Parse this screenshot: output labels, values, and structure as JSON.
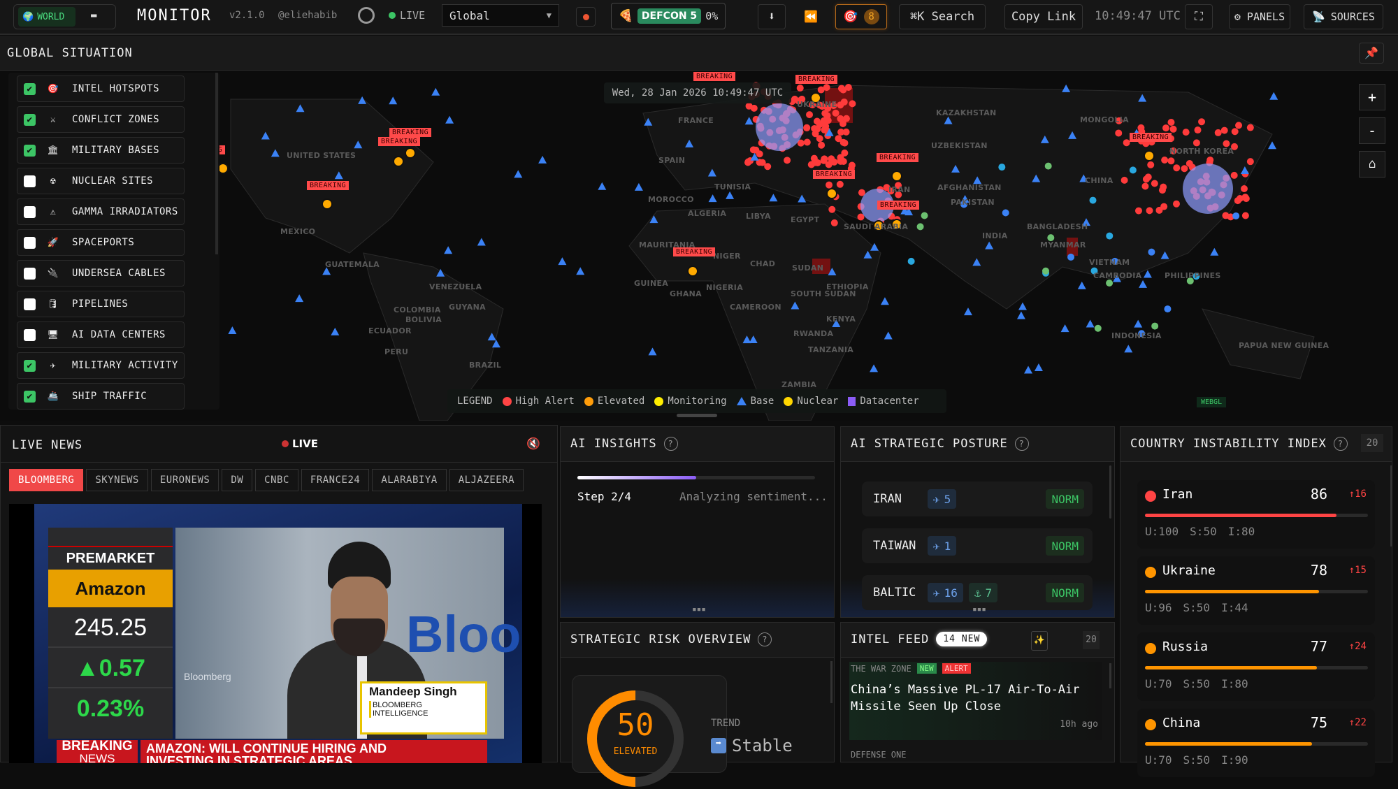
{
  "header": {
    "world_label": "WORLD",
    "title": "MONITOR",
    "version": "v2.1.0",
    "handle": "@eliehabib",
    "live_label": "LIVE",
    "region_select": "Global",
    "defcon_label": "DEFCON 5",
    "defcon_pct": "0%",
    "alerts_count": "8",
    "search_label": "⌘K  Search",
    "copy_link": "Copy Link",
    "clock": "10:49:47 UTC",
    "panels_label": "⚙ PANELS",
    "sources_label": "SOURCES"
  },
  "situation": {
    "title": "GLOBAL SITUATION"
  },
  "map": {
    "timestamp": "Wed, 28 Jan 2026 10:49:47 UTC",
    "zoom_in": "+",
    "zoom_out": "-",
    "home": "⌂",
    "renderer": "WEBGL",
    "breaking_label": "BREAKING",
    "country_labels": [
      "UNITED STATES",
      "MEXICO",
      "GUATEMALA",
      "COLOMBIA",
      "VENEZUELA",
      "GUYANA",
      "ECUADOR",
      "PERU",
      "BRAZIL",
      "BOLIVIA",
      "SPAIN",
      "FRANCE",
      "MOROCCO",
      "ALGERIA",
      "TUNISIA",
      "LIBYA",
      "EGYPT",
      "MAURITANIA",
      "NIGER",
      "CHAD",
      "SUDAN",
      "GUINEA",
      "NIGERIA",
      "GHANA",
      "ETHIOPIA",
      "SOUTH SUDAN",
      "CAMEROON",
      "KENYA",
      "RWANDA",
      "TANZANIA",
      "ZAMBIA",
      "UKRAINE",
      "KAZAKHSTAN",
      "UZBEKISTAN",
      "MONGOLIA",
      "AFGHANISTAN",
      "PAKISTAN",
      "IRAN",
      "SAUDI ARABIA",
      "CHINA",
      "INDIA",
      "BANGLADESH",
      "MYANMAR",
      "VIETNAM",
      "CAMBODIA",
      "PHILIPPINES",
      "INDONESIA",
      "PAPUA NEW GUINEA",
      "NORTH KOREA"
    ],
    "legend": {
      "title": "LEGEND",
      "items": [
        {
          "label": "High Alert",
          "color": "#ff4444"
        },
        {
          "label": "Elevated",
          "color": "#ff9d0a"
        },
        {
          "label": "Monitoring",
          "color": "#ffee00"
        },
        {
          "label": "Base",
          "color": "#3b82f6"
        },
        {
          "label": "Nuclear",
          "color": "#ffd600"
        },
        {
          "label": "Datacenter",
          "color": "#8b5cf6"
        }
      ]
    }
  },
  "layers": [
    {
      "label": "INTEL HOTSPOTS",
      "checked": true,
      "icon": "🎯"
    },
    {
      "label": "CONFLICT ZONES",
      "checked": true,
      "icon": "⚔"
    },
    {
      "label": "MILITARY BASES",
      "checked": true,
      "icon": "🏛"
    },
    {
      "label": "NUCLEAR SITES",
      "checked": false,
      "icon": "☢"
    },
    {
      "label": "GAMMA IRRADIATORS",
      "checked": false,
      "icon": "⚠"
    },
    {
      "label": "SPACEPORTS",
      "checked": false,
      "icon": "🚀"
    },
    {
      "label": "UNDERSEA CABLES",
      "checked": false,
      "icon": "🔌"
    },
    {
      "label": "PIPELINES",
      "checked": false,
      "icon": "🛢"
    },
    {
      "label": "AI DATA CENTERS",
      "checked": false,
      "icon": "🖥"
    },
    {
      "label": "MILITARY ACTIVITY",
      "checked": true,
      "icon": "✈"
    },
    {
      "label": "SHIP TRAFFIC",
      "checked": true,
      "icon": "🚢"
    }
  ],
  "live_news": {
    "title": "LIVE NEWS",
    "live": "LIVE",
    "channels": [
      "BLOOMBERG",
      "SKYNEWS",
      "EURONEWS",
      "DW",
      "CNBC",
      "FRANCE24",
      "ALARABIYA",
      "ALJAZEERA"
    ],
    "active": 0,
    "video": {
      "premarket": "PREMARKET",
      "ticker": "Amazon",
      "price": "245.25",
      "change": "0.57",
      "pct": "0.23%",
      "name": "Mandeep Singh",
      "org": "BLOOMBERG INTELLIGENCE",
      "brand": "Bloo",
      "watermark": "Bloomberg",
      "breaking": "BREAKING",
      "news": "NEWS",
      "headline1": "AMAZON: WILL CONTINUE HIRING AND",
      "headline2": "INVESTING IN STRATEGIC AREAS"
    }
  },
  "ai_insights": {
    "title": "AI INSIGHTS",
    "help": "?",
    "progress": 0.5,
    "step": "Step 2/4",
    "status": "Analyzing sentiment..."
  },
  "posture": {
    "title": "AI STRATEGIC POSTURE",
    "help": "?",
    "rows": [
      {
        "region": "IRAN",
        "air": "5",
        "sea": null,
        "status": "NORM"
      },
      {
        "region": "TAIWAN",
        "air": "1",
        "sea": null,
        "status": "NORM"
      },
      {
        "region": "BALTIC",
        "air": "16",
        "sea": "7",
        "status": "NORM"
      }
    ]
  },
  "risk": {
    "title": "STRATEGIC RISK OVERVIEW",
    "help": "?",
    "score": "50",
    "score_value": 50,
    "level": "ELEVATED",
    "trend_label": "TREND",
    "trend": "Stable"
  },
  "intel": {
    "title": "INTEL FEED",
    "new_badge": "14 NEW",
    "count": "20",
    "items": [
      {
        "source": "THE WAR ZONE",
        "new": "NEW",
        "alert": "ALERT",
        "headline": "China’s Massive PL-17 Air-To-Air Missile Seen Up Close",
        "time": "10h ago"
      },
      {
        "source": "DEFENSE ONE"
      }
    ]
  },
  "cii": {
    "title": "COUNTRY INSTABILITY INDEX",
    "help": "?",
    "count": "20",
    "rows": [
      {
        "country": "Iran",
        "score": "86",
        "delta": "↑16",
        "u": "U:100",
        "s": "S:50",
        "i": "I:80",
        "color": "#ff4444"
      },
      {
        "country": "Ukraine",
        "score": "78",
        "delta": "↑15",
        "u": "U:96",
        "s": "S:50",
        "i": "I:44",
        "color": "#ff9500"
      },
      {
        "country": "Russia",
        "score": "77",
        "delta": "↑24",
        "u": "U:70",
        "s": "S:50",
        "i": "I:80",
        "color": "#ff9500"
      },
      {
        "country": "China",
        "score": "75",
        "delta": "↑22",
        "u": "U:70",
        "s": "S:50",
        "i": "I:90",
        "color": "#ff9500"
      }
    ]
  }
}
